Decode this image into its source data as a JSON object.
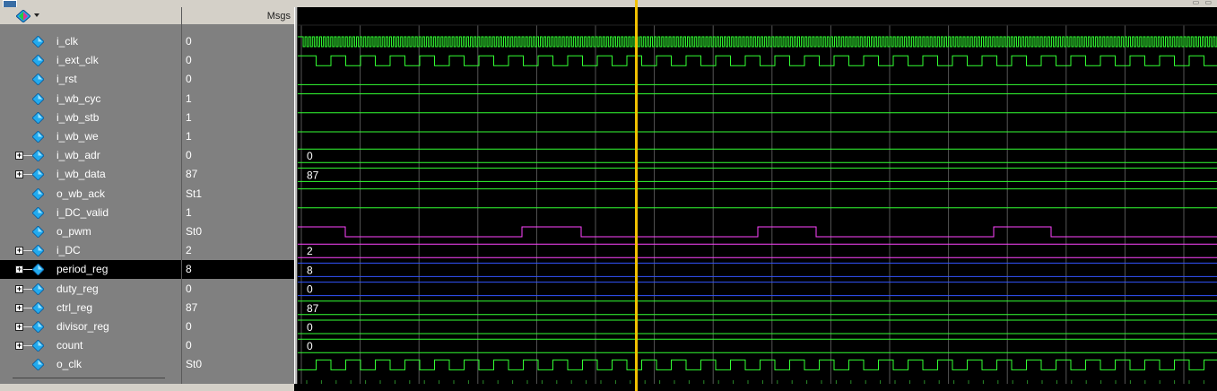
{
  "window": {
    "header_msgs_label": "Msgs"
  },
  "signals": [
    {
      "name": "i_clk",
      "value": "0",
      "type": "bit",
      "expandable": false,
      "selected": false
    },
    {
      "name": "i_ext_clk",
      "value": "0",
      "type": "bit",
      "expandable": false,
      "selected": false
    },
    {
      "name": "i_rst",
      "value": "0",
      "type": "bit",
      "expandable": false,
      "selected": false
    },
    {
      "name": "i_wb_cyc",
      "value": "1",
      "type": "bit",
      "expandable": false,
      "selected": false
    },
    {
      "name": "i_wb_stb",
      "value": "1",
      "type": "bit",
      "expandable": false,
      "selected": false
    },
    {
      "name": "i_wb_we",
      "value": "1",
      "type": "bit",
      "expandable": false,
      "selected": false
    },
    {
      "name": "i_wb_adr",
      "value": "0",
      "type": "bus",
      "expandable": true,
      "selected": false,
      "bus_label": "0"
    },
    {
      "name": "i_wb_data",
      "value": "87",
      "type": "bus",
      "expandable": true,
      "selected": false,
      "bus_label": "87"
    },
    {
      "name": "o_wb_ack",
      "value": "St1",
      "type": "bit",
      "expandable": false,
      "selected": false
    },
    {
      "name": "i_DC_valid",
      "value": "1",
      "type": "bit",
      "expandable": false,
      "selected": false
    },
    {
      "name": "o_pwm",
      "value": "St0",
      "type": "bit",
      "expandable": false,
      "selected": false
    },
    {
      "name": "i_DC",
      "value": "2",
      "type": "bus",
      "expandable": true,
      "selected": false,
      "bus_label": "2"
    },
    {
      "name": "period_reg",
      "value": "8",
      "type": "bus",
      "expandable": true,
      "selected": true,
      "bus_label": "8"
    },
    {
      "name": "duty_reg",
      "value": "0",
      "type": "bus",
      "expandable": true,
      "selected": false,
      "bus_label": "0"
    },
    {
      "name": "ctrl_reg",
      "value": "87",
      "type": "bus",
      "expandable": true,
      "selected": false,
      "bus_label": "87"
    },
    {
      "name": "divisor_reg",
      "value": "0",
      "type": "bus",
      "expandable": true,
      "selected": false,
      "bus_label": "0"
    },
    {
      "name": "count",
      "value": "0",
      "type": "bus",
      "expandable": true,
      "selected": false,
      "bus_label": "0"
    },
    {
      "name": "o_clk",
      "value": "St0",
      "type": "bit",
      "expandable": false,
      "selected": false
    }
  ],
  "colors": {
    "wave_green": "#33ff33",
    "wave_magenta": "#ff44ff",
    "wave_blue": "#3355ff",
    "cursor": "#f0c000",
    "grid": "#555555",
    "diamond": "#22aaee"
  },
  "icons": {
    "toolbar": "wave-format-icon",
    "signal": "diamond-signal-icon",
    "expand": "plus-box-icon"
  }
}
